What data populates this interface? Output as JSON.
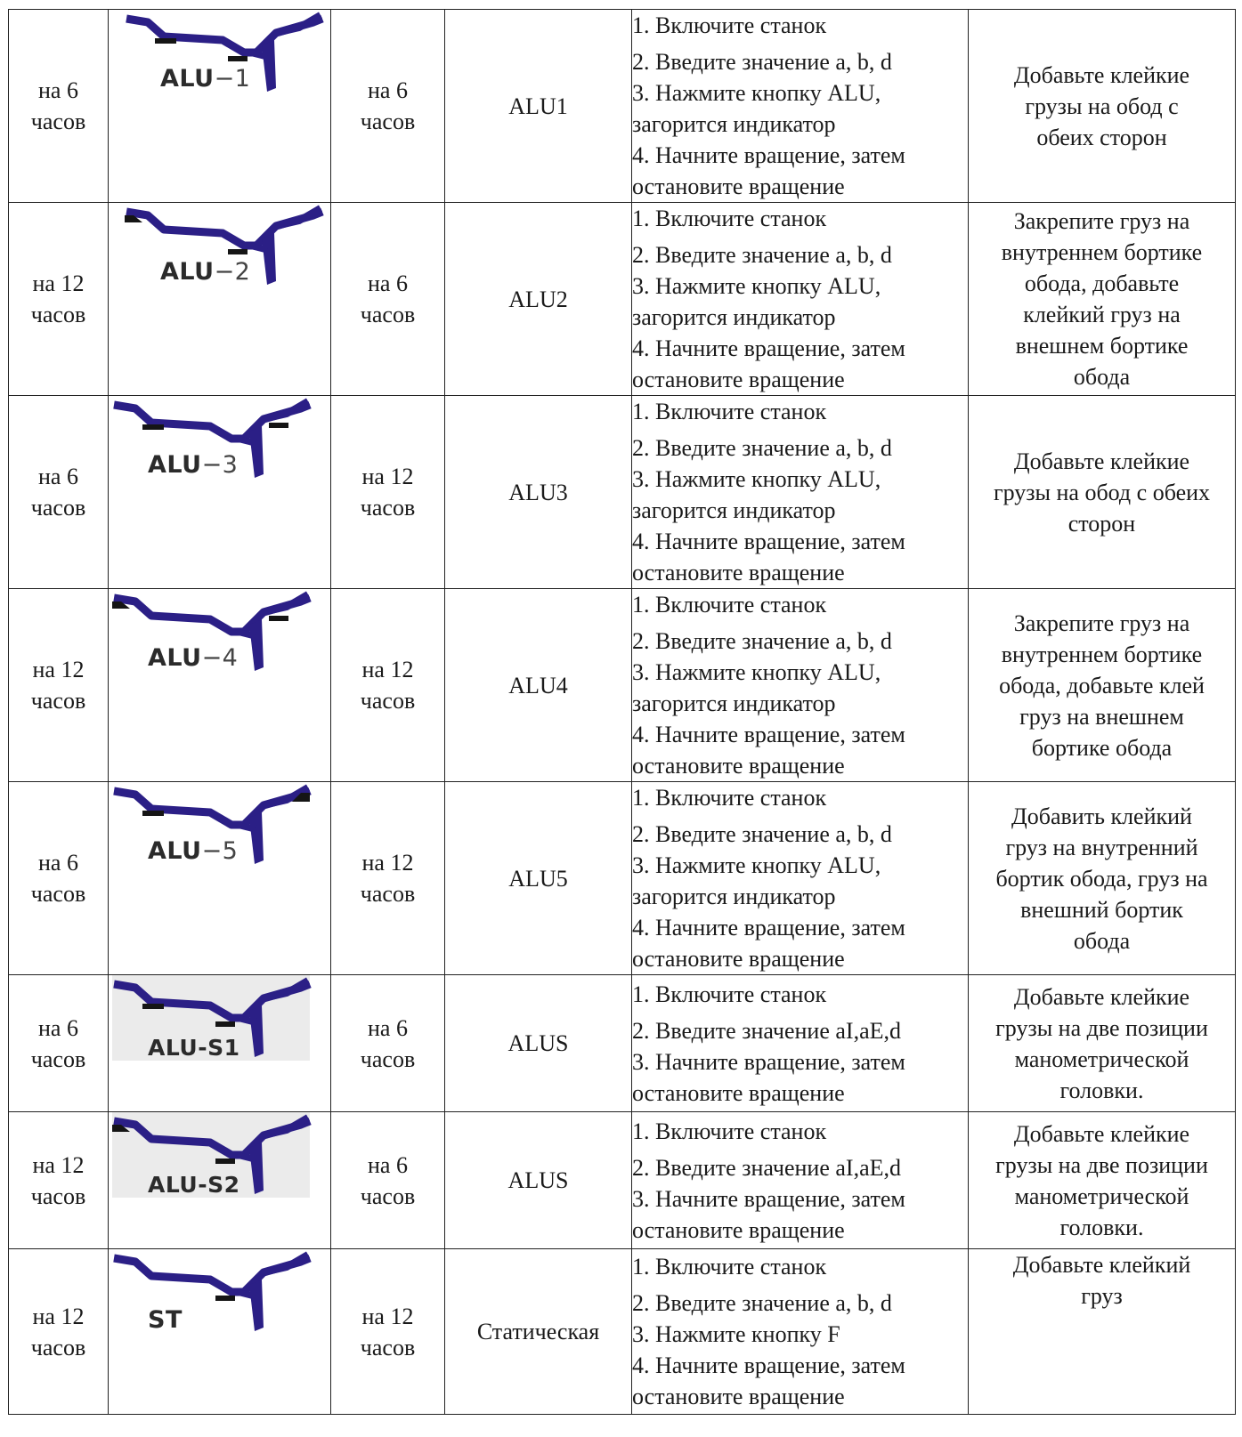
{
  "colors": {
    "rim": "#2b1f86",
    "weight": "#151515",
    "border": "#222222"
  },
  "rows": [
    {
      "sensor_pos": [
        "на 6",
        "часов"
      ],
      "icon": {
        "label_bold": "ALU",
        "label_thin": "−1",
        "weights": [
          "inner-bottom-left",
          "inner-bottom-center"
        ],
        "shaded": false
      },
      "weight_pos": [
        "на 6",
        "часов"
      ],
      "mode": "ALU1",
      "steps": [
        "1. Включите станок",
        "2. Введите значение a, b, d",
        "3. Нажмите кнопку ALU,",
        "загорится индикатор",
        "4. Начните вращение, затем",
        "остановите вращение"
      ],
      "note": [
        "Добавьте клейкие",
        "грузы на обод с",
        "обеих сторон"
      ]
    },
    {
      "sensor_pos": [
        "на 12",
        "часов"
      ],
      "icon": {
        "label_bold": "ALU",
        "label_thin": "−2",
        "weights": [
          "outer-top-left",
          "inner-bottom-center"
        ],
        "shaded": false
      },
      "weight_pos": [
        "на 6",
        "часов"
      ],
      "mode": "ALU2",
      "steps": [
        "1. Включите станок",
        "2. Введите значение a, b, d",
        "3. Нажмите кнопку ALU,",
        "загорится индикатор",
        "4. Начните вращение, затем",
        "остановите вращение"
      ],
      "note": [
        "Закрепите груз на",
        "внутреннем бортике",
        "обода, добавьте",
        "клейкий груз на",
        "внешнем бортике",
        "обода"
      ]
    },
    {
      "sensor_pos": [
        "на 6",
        "часов"
      ],
      "icon": {
        "label_bold": "ALU",
        "label_thin": "−3",
        "weights": [
          "inner-bottom-left",
          "inner-right"
        ],
        "shaded": false
      },
      "weight_pos": [
        "на 12",
        "часов"
      ],
      "mode": "ALU3",
      "steps": [
        "1. Включите станок",
        "2. Введите значение a, b, d",
        "3. Нажмите кнопку ALU,",
        "загорится индикатор",
        "4. Начните вращение, затем",
        "остановите вращение"
      ],
      "note": [
        "Добавьте клейкие",
        "грузы на обод с обеих",
        "сторон"
      ]
    },
    {
      "sensor_pos": [
        "на 12",
        "часов"
      ],
      "icon": {
        "label_bold": "ALU",
        "label_thin": "−4",
        "weights": [
          "outer-top-left",
          "inner-right"
        ],
        "shaded": false
      },
      "weight_pos": [
        "на 12",
        "часов"
      ],
      "mode": "ALU4",
      "steps": [
        "1. Включите станок",
        "2. Введите значение a, b, d",
        "3. Нажмите кнопку ALU,",
        "загорится индикатор",
        "4. Начните вращение, затем",
        "остановите вращение"
      ],
      "note": [
        "Закрепите груз на",
        "внутреннем бортике",
        "обода, добавьте клей",
        "груз на внешнем",
        "бортике обода"
      ]
    },
    {
      "sensor_pos": [
        "на 6",
        "часов"
      ],
      "icon": {
        "label_bold": "ALU",
        "label_thin": "−5",
        "weights": [
          "inner-bottom-left",
          "outer-top-right"
        ],
        "shaded": false
      },
      "weight_pos": [
        "на 12",
        "часов"
      ],
      "mode": "ALU5",
      "steps": [
        "1. Включите станок",
        "2. Введите значение a, b, d",
        "3. Нажмите кнопку ALU,",
        "загорится индикатор",
        "4. Начните вращение, затем",
        "остановите вращение"
      ],
      "note": [
        "Добавить клейкий",
        "груз на внутренний",
        "бортик обода, груз на",
        "внешний бортик",
        "обода"
      ]
    },
    {
      "sensor_pos": [
        "на 6",
        "часов"
      ],
      "icon": {
        "label_bold": "ALU-S1",
        "label_thin": "",
        "weights": [
          "inner-bottom-left",
          "inner-bottom-center"
        ],
        "shaded": true
      },
      "weight_pos": [
        "на 6",
        "часов"
      ],
      "mode": "ALUS",
      "steps": [
        "1. Включите станок",
        "2. Введите значение aI,aE,d",
        "3. Начните вращение, затем",
        "остановите вращение"
      ],
      "note": [
        "Добавьте клейкие",
        "грузы на две позиции",
        "манометрической",
        "головки."
      ]
    },
    {
      "sensor_pos": [
        "на 12",
        "часов"
      ],
      "icon": {
        "label_bold": "ALU-S2",
        "label_thin": "",
        "weights": [
          "outer-top-left",
          "inner-bottom-center"
        ],
        "shaded": true
      },
      "weight_pos": [
        "на 6",
        "часов"
      ],
      "mode": "ALUS",
      "steps": [
        "1. Включите станок",
        "2. Введите значение aI,aE,d",
        "3. Начните вращение, затем",
        "остановите вращение"
      ],
      "note": [
        "Добавьте клейкие",
        "грузы на две позиции",
        "манометрической",
        "головки."
      ]
    },
    {
      "sensor_pos": [
        "на 12",
        "часов"
      ],
      "icon": {
        "label_bold": "ST",
        "label_thin": "",
        "weights": [
          "inner-bottom-center"
        ],
        "shaded": false
      },
      "weight_pos": [
        "на 12",
        "часов"
      ],
      "mode": "Статическая",
      "steps": [
        "1. Включите станок",
        "2. Введите значение a, b, d",
        "3. Нажмите кнопку F",
        "4. Начните вращение, затем",
        "остановите вращение"
      ],
      "note": [
        "Добавьте клейкий",
        "груз"
      ]
    }
  ]
}
